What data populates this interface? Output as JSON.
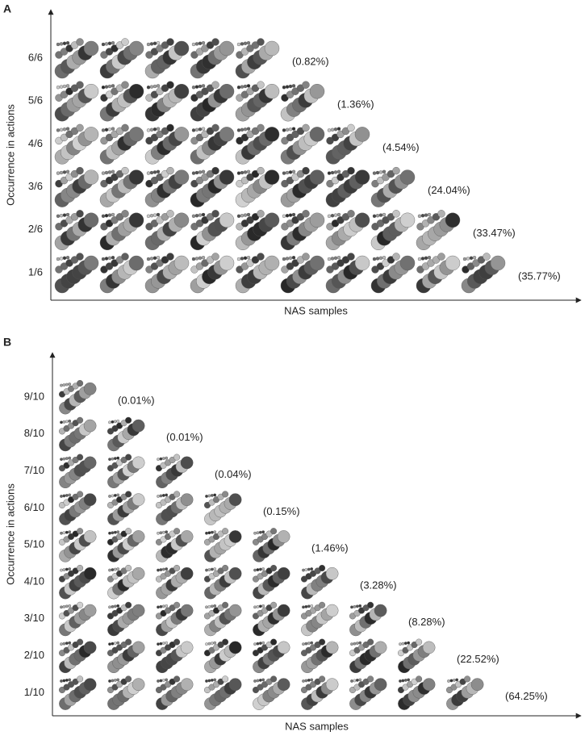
{
  "panels": [
    {
      "label": "A",
      "y_axis_title": "Occurrence in actions",
      "x_axis_title": "NAS samples",
      "rows": [
        {
          "label": "6/6",
          "percent": "(0.82%)"
        },
        {
          "label": "5/6",
          "percent": "(1.36%)"
        },
        {
          "label": "4/6",
          "percent": "(4.54%)"
        },
        {
          "label": "3/6",
          "percent": "(24.04%)"
        },
        {
          "label": "2/6",
          "percent": "(33.47%)"
        },
        {
          "label": "1/6",
          "percent": "(35.77%)"
        }
      ]
    },
    {
      "label": "B",
      "y_axis_title": "Occurrence in actions",
      "x_axis_title": "NAS samples",
      "rows": [
        {
          "label": "9/10",
          "percent": "(0.01%)"
        },
        {
          "label": "8/10",
          "percent": "(0.01%)"
        },
        {
          "label": "7/10",
          "percent": "(0.04%)"
        },
        {
          "label": "6/10",
          "percent": "(0.15%)"
        },
        {
          "label": "5/10",
          "percent": "(1.46%)"
        },
        {
          "label": "4/10",
          "percent": "(3.28%)"
        },
        {
          "label": "3/10",
          "percent": "(8.28%)"
        },
        {
          "label": "2/10",
          "percent": "(22.52%)"
        },
        {
          "label": "1/10",
          "percent": "(64.25%)"
        }
      ]
    }
  ]
}
